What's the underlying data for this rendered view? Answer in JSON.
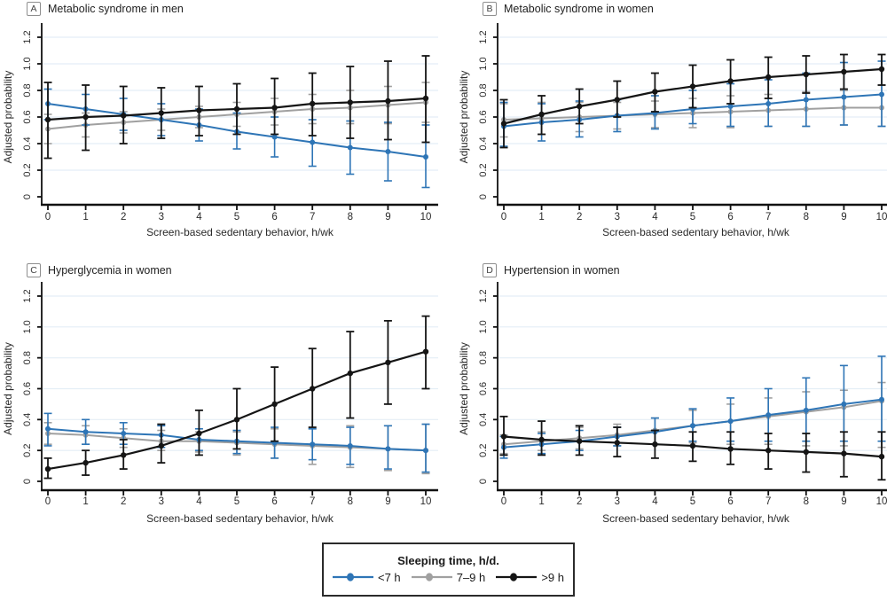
{
  "figure": {
    "grid_color": "#e4eef6",
    "legend": {
      "title": "Sleeping time, h/d.",
      "items": [
        {
          "label": "<7 h",
          "color": "#2e75b6"
        },
        {
          "label": "7–9 h",
          "color": "#a0a0a0"
        },
        {
          "label": ">9 h",
          "color": "#151515"
        }
      ]
    }
  },
  "chart_data": [
    {
      "type": "line",
      "panel": "A",
      "title": "Metabolic syndrome in men",
      "xlabel": "Screen-based sedentary behavior, h/wk",
      "ylabel": "Adjusted probability",
      "x": [
        0,
        1,
        2,
        3,
        4,
        5,
        6,
        7,
        8,
        9,
        10
      ],
      "ylim": [
        0,
        1.2
      ],
      "yticks": [
        0,
        0.2,
        0.4,
        0.6,
        0.8,
        1.0,
        1.2
      ],
      "grid": true,
      "legend_position": "bottom",
      "series": [
        {
          "name": "<7 h",
          "color": "#2e75b6",
          "values": [
            0.7,
            0.66,
            0.62,
            0.58,
            0.54,
            0.49,
            0.45,
            0.41,
            0.37,
            0.34,
            0.3
          ],
          "lo": [
            0.58,
            0.54,
            0.5,
            0.46,
            0.42,
            0.36,
            0.3,
            0.23,
            0.17,
            0.12,
            0.07
          ],
          "hi": [
            0.81,
            0.77,
            0.74,
            0.7,
            0.66,
            0.63,
            0.6,
            0.58,
            0.57,
            0.56,
            0.54
          ]
        },
        {
          "name": "7–9 h",
          "color": "#a0a0a0",
          "values": [
            0.51,
            0.54,
            0.56,
            0.58,
            0.6,
            0.62,
            0.64,
            0.66,
            0.67,
            0.69,
            0.71
          ],
          "lo": [
            0.4,
            0.45,
            0.48,
            0.5,
            0.52,
            0.53,
            0.54,
            0.55,
            0.55,
            0.55,
            0.56
          ],
          "hi": [
            0.62,
            0.63,
            0.64,
            0.66,
            0.68,
            0.71,
            0.74,
            0.77,
            0.8,
            0.83,
            0.86
          ]
        },
        {
          "name": ">9 h",
          "color": "#151515",
          "values": [
            0.58,
            0.6,
            0.61,
            0.63,
            0.65,
            0.66,
            0.67,
            0.7,
            0.71,
            0.72,
            0.74
          ],
          "lo": [
            0.29,
            0.35,
            0.4,
            0.44,
            0.46,
            0.47,
            0.47,
            0.46,
            0.44,
            0.43,
            0.41
          ],
          "hi": [
            0.86,
            0.84,
            0.83,
            0.82,
            0.83,
            0.85,
            0.89,
            0.93,
            0.98,
            1.02,
            1.06
          ]
        }
      ]
    },
    {
      "type": "line",
      "panel": "B",
      "title": "Metabolic syndrome in women",
      "xlabel": "Screen-based sedentary behavior, h/wk",
      "ylabel": "Adjusted probability",
      "x": [
        0,
        1,
        2,
        3,
        4,
        5,
        6,
        7,
        8,
        9,
        10
      ],
      "ylim": [
        0,
        1.2
      ],
      "yticks": [
        0,
        0.2,
        0.4,
        0.6,
        0.8,
        1.0,
        1.2
      ],
      "grid": true,
      "legend_position": "bottom",
      "series": [
        {
          "name": "<7 h",
          "color": "#2e75b6",
          "values": [
            0.53,
            0.56,
            0.58,
            0.61,
            0.63,
            0.66,
            0.68,
            0.7,
            0.73,
            0.75,
            0.77
          ],
          "lo": [
            0.38,
            0.42,
            0.45,
            0.49,
            0.51,
            0.55,
            0.53,
            0.53,
            0.53,
            0.54,
            0.53
          ],
          "hi": [
            0.71,
            0.7,
            0.72,
            0.73,
            0.76,
            0.8,
            0.85,
            0.88,
            0.93,
            1.01,
            1.02
          ]
        },
        {
          "name": "7–9 h",
          "color": "#a0a0a0",
          "values": [
            0.58,
            0.59,
            0.6,
            0.61,
            0.62,
            0.63,
            0.64,
            0.65,
            0.66,
            0.67,
            0.67
          ],
          "lo": [
            0.45,
            0.47,
            0.49,
            0.51,
            0.52,
            0.52,
            0.52,
            0.53,
            0.53,
            0.54,
            0.53
          ],
          "hi": [
            0.7,
            0.71,
            0.71,
            0.71,
            0.72,
            0.74,
            0.76,
            0.77,
            0.79,
            0.8,
            0.84
          ]
        },
        {
          "name": ">9 h",
          "color": "#151515",
          "values": [
            0.55,
            0.62,
            0.68,
            0.73,
            0.79,
            0.83,
            0.87,
            0.9,
            0.92,
            0.94,
            0.96
          ],
          "lo": [
            0.37,
            0.47,
            0.55,
            0.6,
            0.64,
            0.67,
            0.7,
            0.74,
            0.78,
            0.81,
            0.84
          ],
          "hi": [
            0.73,
            0.76,
            0.81,
            0.87,
            0.93,
            0.99,
            1.03,
            1.05,
            1.06,
            1.07,
            1.07
          ]
        }
      ]
    },
    {
      "type": "line",
      "panel": "C",
      "title": "Hyperglycemia in women",
      "xlabel": "Screen-based sedentary behavior, h/wk",
      "ylabel": "Adjusted probability",
      "x": [
        0,
        1,
        2,
        3,
        4,
        5,
        6,
        7,
        8,
        9,
        10
      ],
      "ylim": [
        0,
        1.2
      ],
      "yticks": [
        0,
        0.2,
        0.4,
        0.6,
        0.8,
        1.0,
        1.2
      ],
      "grid": true,
      "legend_position": "bottom",
      "series": [
        {
          "name": "<7 h",
          "color": "#2e75b6",
          "values": [
            0.34,
            0.32,
            0.31,
            0.3,
            0.27,
            0.26,
            0.25,
            0.24,
            0.23,
            0.21,
            0.2
          ],
          "lo": [
            0.23,
            0.24,
            0.24,
            0.22,
            0.2,
            0.18,
            0.15,
            0.14,
            0.11,
            0.08,
            0.06
          ],
          "hi": [
            0.44,
            0.4,
            0.38,
            0.36,
            0.34,
            0.33,
            0.35,
            0.34,
            0.35,
            0.36,
            0.37
          ]
        },
        {
          "name": "7–9 h",
          "color": "#a0a0a0",
          "values": [
            0.31,
            0.3,
            0.28,
            0.26,
            0.26,
            0.25,
            0.24,
            0.23,
            0.22,
            0.21,
            0.2
          ],
          "lo": [
            0.24,
            0.24,
            0.22,
            0.2,
            0.19,
            0.17,
            0.15,
            0.11,
            0.09,
            0.07,
            0.05
          ],
          "hi": [
            0.38,
            0.36,
            0.34,
            0.33,
            0.32,
            0.32,
            0.34,
            0.34,
            0.36,
            0.36,
            0.37
          ]
        },
        {
          "name": ">9 h",
          "color": "#151515",
          "values": [
            0.08,
            0.12,
            0.17,
            0.23,
            0.31,
            0.4,
            0.5,
            0.6,
            0.7,
            0.77,
            0.84
          ],
          "lo": [
            0.02,
            0.04,
            0.08,
            0.12,
            0.17,
            0.21,
            0.26,
            0.35,
            0.41,
            0.5,
            0.6
          ],
          "hi": [
            0.15,
            0.2,
            0.27,
            0.37,
            0.46,
            0.6,
            0.74,
            0.86,
            0.97,
            1.04,
            1.07
          ]
        }
      ]
    },
    {
      "type": "line",
      "panel": "D",
      "title": "Hypertension in women",
      "xlabel": "Screen-based sedentary behavior, h/wk",
      "ylabel": "Adjusted probability",
      "x": [
        0,
        1,
        2,
        3,
        4,
        5,
        6,
        7,
        8,
        9,
        10
      ],
      "ylim": [
        0,
        1.2
      ],
      "yticks": [
        0,
        0.2,
        0.4,
        0.6,
        0.8,
        1.0,
        1.2
      ],
      "grid": true,
      "legend_position": "bottom",
      "series": [
        {
          "name": "<7 h",
          "color": "#2e75b6",
          "values": [
            0.22,
            0.24,
            0.26,
            0.29,
            0.32,
            0.36,
            0.39,
            0.43,
            0.46,
            0.5,
            0.53
          ],
          "lo": [
            0.15,
            0.18,
            0.2,
            0.23,
            0.24,
            0.26,
            0.26,
            0.26,
            0.26,
            0.26,
            0.26
          ],
          "hi": [
            0.29,
            0.31,
            0.33,
            0.35,
            0.41,
            0.47,
            0.54,
            0.6,
            0.67,
            0.75,
            0.81
          ]
        },
        {
          "name": "7–9 h",
          "color": "#a0a0a0",
          "values": [
            0.24,
            0.26,
            0.28,
            0.3,
            0.33,
            0.36,
            0.39,
            0.42,
            0.45,
            0.48,
            0.52
          ],
          "lo": [
            0.18,
            0.2,
            0.21,
            0.23,
            0.24,
            0.25,
            0.24,
            0.24,
            0.23,
            0.23,
            0.22
          ],
          "hi": [
            0.3,
            0.32,
            0.35,
            0.37,
            0.41,
            0.46,
            0.5,
            0.54,
            0.58,
            0.59,
            0.64
          ]
        },
        {
          "name": ">9 h",
          "color": "#151515",
          "values": [
            0.29,
            0.27,
            0.26,
            0.25,
            0.24,
            0.23,
            0.21,
            0.2,
            0.19,
            0.18,
            0.16
          ],
          "lo": [
            0.17,
            0.17,
            0.17,
            0.16,
            0.15,
            0.13,
            0.11,
            0.08,
            0.06,
            0.03,
            0.01
          ],
          "hi": [
            0.42,
            0.39,
            0.36,
            0.35,
            0.33,
            0.32,
            0.32,
            0.31,
            0.31,
            0.32,
            0.32
          ]
        }
      ]
    }
  ]
}
